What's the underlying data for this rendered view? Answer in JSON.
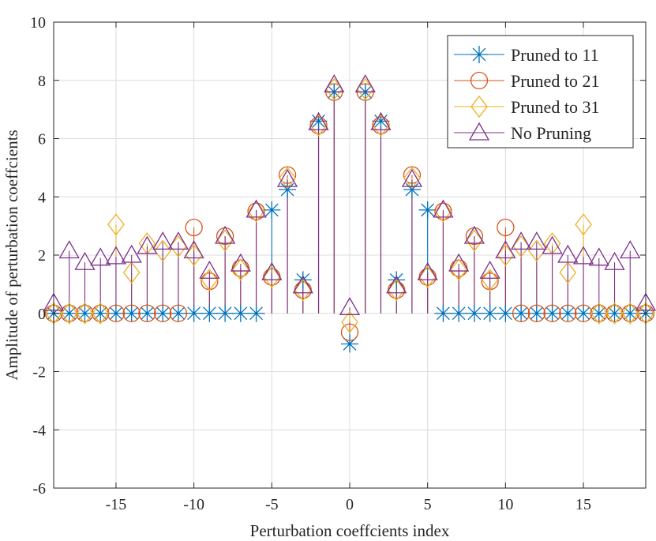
{
  "chart_data": {
    "type": "stem",
    "xlabel": "Perturbation coeffcients index",
    "ylabel": "Amplitude of perturbation coeffcients",
    "xlim": [
      -19,
      19
    ],
    "ylim": [
      -6,
      10
    ],
    "xticks": [
      -15,
      -10,
      -5,
      0,
      5,
      10,
      15
    ],
    "yticks": [
      -6,
      -4,
      -2,
      0,
      2,
      4,
      6,
      8,
      10
    ],
    "grid": true,
    "legend_position": "top-right",
    "x": [
      -19,
      -18,
      -17,
      -16,
      -15,
      -14,
      -13,
      -12,
      -11,
      -10,
      -9,
      -8,
      -7,
      -6,
      -5,
      -4,
      -3,
      -2,
      -1,
      0,
      1,
      2,
      3,
      4,
      5,
      6,
      7,
      8,
      9,
      10,
      11,
      12,
      13,
      14,
      15,
      16,
      17,
      18,
      19
    ],
    "series": [
      {
        "name": "Pruned to 11",
        "marker": "asterisk",
        "color": "#0072BD",
        "values": [
          0,
          0,
          0,
          0,
          0,
          0,
          0,
          0,
          0,
          0,
          0,
          0,
          0,
          0,
          3.55,
          4.25,
          1.15,
          6.6,
          7.6,
          -1.05,
          7.6,
          6.6,
          1.15,
          4.25,
          3.55,
          0,
          0,
          0,
          0,
          0,
          0,
          0,
          0,
          0,
          0,
          0,
          0,
          0,
          0
        ]
      },
      {
        "name": "Pruned to 21",
        "marker": "circle",
        "color": "#D95319",
        "values": [
          0,
          0,
          0,
          0,
          0,
          0,
          0,
          0,
          0,
          2.95,
          1.1,
          2.65,
          1.55,
          3.5,
          1.25,
          4.75,
          0.8,
          6.45,
          7.6,
          -0.65,
          7.6,
          6.45,
          0.8,
          4.75,
          1.25,
          3.5,
          1.55,
          2.65,
          1.1,
          2.95,
          0,
          0,
          0,
          0,
          0,
          0,
          0,
          0,
          0
        ]
      },
      {
        "name": "Pruned to 31",
        "marker": "diamond",
        "color": "#EDB120",
        "values": [
          0,
          0,
          0,
          0,
          3.05,
          1.4,
          2.4,
          2.15,
          2.3,
          2.0,
          1.15,
          2.5,
          1.5,
          3.5,
          1.25,
          4.65,
          0.8,
          6.45,
          7.7,
          -0.3,
          7.7,
          6.45,
          0.8,
          4.65,
          1.25,
          3.5,
          1.5,
          2.5,
          1.15,
          2.0,
          2.3,
          2.15,
          2.4,
          1.4,
          3.05,
          0,
          0,
          0,
          0
        ]
      },
      {
        "name": "No Pruning",
        "marker": "triangle",
        "color": "#7E2F8E",
        "values": [
          0.35,
          2.15,
          1.75,
          1.9,
          1.95,
          2.0,
          2.3,
          2.45,
          2.45,
          2.15,
          1.45,
          2.65,
          1.7,
          3.55,
          1.4,
          4.6,
          0.95,
          6.55,
          7.85,
          0.2,
          7.85,
          6.55,
          0.95,
          4.6,
          1.4,
          3.55,
          1.7,
          2.65,
          1.45,
          2.15,
          2.45,
          2.45,
          2.3,
          2.0,
          1.95,
          1.9,
          1.75,
          2.15,
          0.35
        ]
      }
    ]
  }
}
